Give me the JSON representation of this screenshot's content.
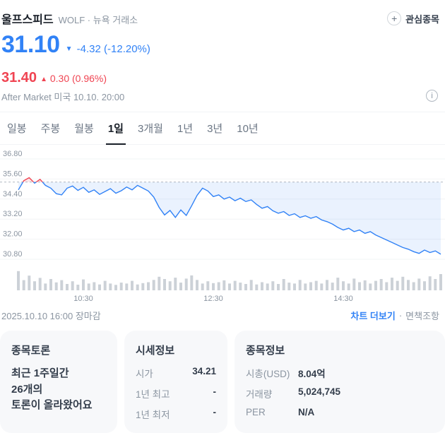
{
  "header": {
    "name": "울프스피드",
    "meta": "WOLF · 뉴욕 거래소",
    "watchlist_icon": "+",
    "watchlist_label": "관심종목"
  },
  "price": {
    "current": "31.10",
    "direction": "▼",
    "change": "-4.32 (-12.20%)"
  },
  "after_market": {
    "price": "31.40",
    "direction": "▲",
    "change": "0.30 (0.96%)",
    "label": "After Market",
    "time": "미국 10.10. 20:00",
    "info_icon": "i"
  },
  "tabs": [
    {
      "label": "일봉"
    },
    {
      "label": "주봉"
    },
    {
      "label": "월봉"
    },
    {
      "label": "1일"
    },
    {
      "label": "3개월"
    },
    {
      "label": "1년"
    },
    {
      "label": "3년"
    },
    {
      "label": "10년"
    }
  ],
  "chart_data": {
    "type": "line",
    "title": "울프스피드 1일 주가 차트",
    "x_unit": "minutes_of_day",
    "x_range": [
      570,
      960
    ],
    "ylim": [
      30.8,
      36.8
    ],
    "yticks": [
      36.8,
      35.6,
      34.4,
      33.2,
      32.0,
      30.8
    ],
    "prev_close": 35.42,
    "x_labels": [
      {
        "t": 630,
        "label": "10:30"
      },
      {
        "t": 750,
        "label": "12:30"
      },
      {
        "t": 870,
        "label": "14:30"
      }
    ],
    "points": [
      [
        570,
        34.95
      ],
      [
        575,
        35.5
      ],
      [
        580,
        35.68
      ],
      [
        585,
        35.35
      ],
      [
        590,
        35.58
      ],
      [
        595,
        35.22
      ],
      [
        600,
        35.05
      ],
      [
        605,
        34.72
      ],
      [
        610,
        34.65
      ],
      [
        615,
        35.05
      ],
      [
        620,
        35.18
      ],
      [
        625,
        34.92
      ],
      [
        630,
        35.1
      ],
      [
        635,
        34.8
      ],
      [
        640,
        34.95
      ],
      [
        645,
        34.68
      ],
      [
        650,
        34.85
      ],
      [
        655,
        35.02
      ],
      [
        660,
        34.75
      ],
      [
        665,
        34.9
      ],
      [
        670,
        35.12
      ],
      [
        675,
        34.95
      ],
      [
        680,
        35.22
      ],
      [
        685,
        35.05
      ],
      [
        690,
        34.88
      ],
      [
        695,
        34.52
      ],
      [
        700,
        33.9
      ],
      [
        705,
        33.45
      ],
      [
        710,
        33.72
      ],
      [
        715,
        33.3
      ],
      [
        720,
        33.75
      ],
      [
        725,
        33.42
      ],
      [
        730,
        34.0
      ],
      [
        735,
        34.62
      ],
      [
        740,
        35.05
      ],
      [
        745,
        34.88
      ],
      [
        750,
        34.55
      ],
      [
        755,
        34.65
      ],
      [
        760,
        34.4
      ],
      [
        765,
        34.52
      ],
      [
        770,
        34.3
      ],
      [
        775,
        34.45
      ],
      [
        780,
        34.25
      ],
      [
        785,
        34.35
      ],
      [
        790,
        34.08
      ],
      [
        795,
        33.85
      ],
      [
        800,
        33.95
      ],
      [
        805,
        33.7
      ],
      [
        810,
        33.55
      ],
      [
        815,
        33.65
      ],
      [
        820,
        33.42
      ],
      [
        825,
        33.52
      ],
      [
        830,
        33.3
      ],
      [
        835,
        33.4
      ],
      [
        840,
        33.25
      ],
      [
        845,
        33.35
      ],
      [
        850,
        33.15
      ],
      [
        855,
        33.05
      ],
      [
        860,
        32.9
      ],
      [
        865,
        32.7
      ],
      [
        870,
        32.55
      ],
      [
        875,
        32.65
      ],
      [
        880,
        32.45
      ],
      [
        885,
        32.55
      ],
      [
        890,
        32.35
      ],
      [
        895,
        32.45
      ],
      [
        900,
        32.25
      ],
      [
        905,
        32.1
      ],
      [
        910,
        31.95
      ],
      [
        915,
        31.8
      ],
      [
        920,
        31.65
      ],
      [
        925,
        31.5
      ],
      [
        930,
        31.4
      ],
      [
        935,
        31.25
      ],
      [
        940,
        31.15
      ],
      [
        945,
        31.35
      ],
      [
        950,
        31.2
      ],
      [
        955,
        31.3
      ],
      [
        960,
        31.1
      ]
    ],
    "volume": [
      0.85,
      0.45,
      0.65,
      0.4,
      0.55,
      0.3,
      0.5,
      0.35,
      0.45,
      0.28,
      0.4,
      0.25,
      0.48,
      0.3,
      0.36,
      0.26,
      0.42,
      0.3,
      0.24,
      0.34,
      0.3,
      0.42,
      0.26,
      0.32,
      0.36,
      0.46,
      0.6,
      0.5,
      0.4,
      0.56,
      0.34,
      0.52,
      0.66,
      0.46,
      0.3,
      0.4,
      0.32,
      0.36,
      0.44,
      0.3,
      0.42,
      0.34,
      0.28,
      0.46,
      0.26,
      0.36,
      0.3,
      0.4,
      0.28,
      0.5,
      0.34,
      0.3,
      0.46,
      0.3,
      0.36,
      0.42,
      0.3,
      0.46,
      0.34,
      0.56,
      0.4,
      0.3,
      0.52,
      0.36,
      0.44,
      0.3,
      0.42,
      0.5,
      0.36,
      0.56,
      0.42,
      0.6,
      0.46,
      0.36,
      0.52,
      0.4,
      0.62,
      0.5,
      0.72
    ],
    "legend": "off",
    "grid": "on",
    "colors": {
      "up": "#f04452",
      "down": "#3182f6",
      "up_fill": "rgba(240,68,82,0.13)",
      "down_fill": "rgba(49,130,246,0.10)",
      "grid": "#f2f4f6",
      "baseline": "#b0b8c1",
      "volume": "#ccd1d7",
      "tick_text": "#8b95a1"
    }
  },
  "footer": {
    "close_status": "2025.10.10 16:00 장마감",
    "chart_more": "차트 더보기",
    "dot": "·",
    "disclaimer": "면책조항"
  },
  "cards": {
    "discussion": {
      "title": "종목토론",
      "line1": "최근 1주일간",
      "line2": "26개의",
      "line3": "토론이 올라왔어요"
    },
    "quote": {
      "title": "시세정보",
      "rows": [
        {
          "label": "시가",
          "value": "34.21"
        },
        {
          "label": "1년 최고",
          "value": "-"
        },
        {
          "label": "1년 최저",
          "value": "-"
        }
      ]
    },
    "info": {
      "title": "종목정보",
      "rows": [
        {
          "label": "시총(USD)",
          "value": "8.04억"
        },
        {
          "label": "거래량",
          "value": "5,024,745"
        },
        {
          "label": "PER",
          "value": "N/A"
        }
      ]
    }
  }
}
